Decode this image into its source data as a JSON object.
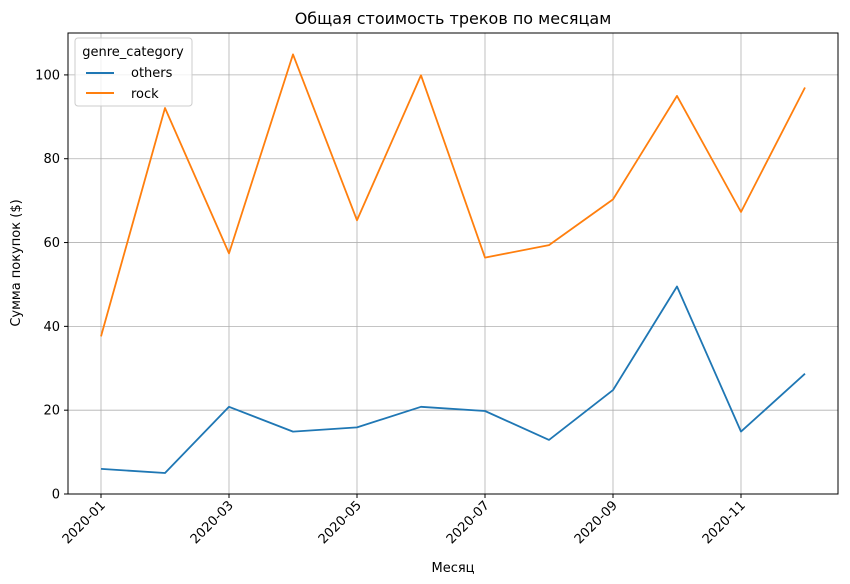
{
  "chart_data": {
    "type": "line",
    "title": "Общая стоимость треков по месяцам",
    "xlabel": "Месяц",
    "ylabel": "Сумма покупок ($)",
    "x": [
      "2020-01",
      "2020-02",
      "2020-03",
      "2020-04",
      "2020-05",
      "2020-06",
      "2020-07",
      "2020-08",
      "2020-09",
      "2020-10",
      "2020-11",
      "2020-12"
    ],
    "x_ticks": [
      "2020-01",
      "2020-03",
      "2020-05",
      "2020-07",
      "2020-09",
      "2020-11"
    ],
    "y_ticks": [
      0,
      20,
      40,
      60,
      80,
      100
    ],
    "ylim": [
      0,
      110
    ],
    "grid": true,
    "legend": {
      "title": "genre_category",
      "placement": "top-left"
    },
    "series": [
      {
        "name": "others",
        "color": "#1f77b4",
        "values": [
          6.0,
          5.0,
          20.8,
          14.9,
          15.9,
          20.8,
          19.8,
          12.9,
          24.8,
          49.5,
          14.9,
          28.7
        ]
      },
      {
        "name": "rock",
        "color": "#ff7f0e",
        "values": [
          37.6,
          92.1,
          57.4,
          104.9,
          65.3,
          99.9,
          56.4,
          59.4,
          70.3,
          95.0,
          67.3,
          97.0
        ]
      }
    ]
  }
}
